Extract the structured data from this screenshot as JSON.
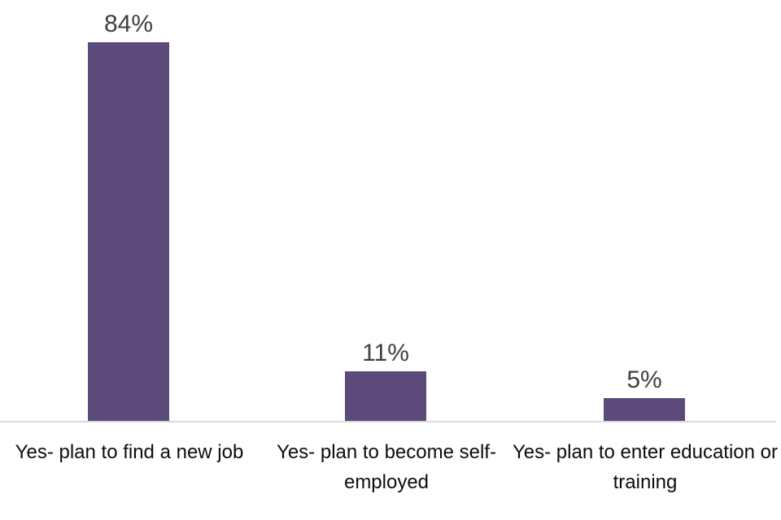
{
  "chart_data": {
    "type": "bar",
    "categories": [
      "Yes- plan to find a new job",
      "Yes- plan to become self-employed",
      "Yes- plan to enter education or training"
    ],
    "category_lines": [
      [
        "Yes- plan to find a new job"
      ],
      [
        "Yes- plan to become self-",
        "employed"
      ],
      [
        "Yes- plan to enter education or",
        "training"
      ]
    ],
    "values": [
      84,
      11,
      5
    ],
    "data_labels": [
      "84%",
      "11%",
      "5%"
    ],
    "title": "",
    "xlabel": "",
    "ylabel": "",
    "ylim": [
      0,
      90
    ],
    "grid": false,
    "legend": false,
    "bar_color": "#5b4a7a",
    "data_label_color": "#404040",
    "category_label_color": "#0d0d0d",
    "axis_line_color": "#d9d9d9",
    "background_color": "#ffffff"
  }
}
